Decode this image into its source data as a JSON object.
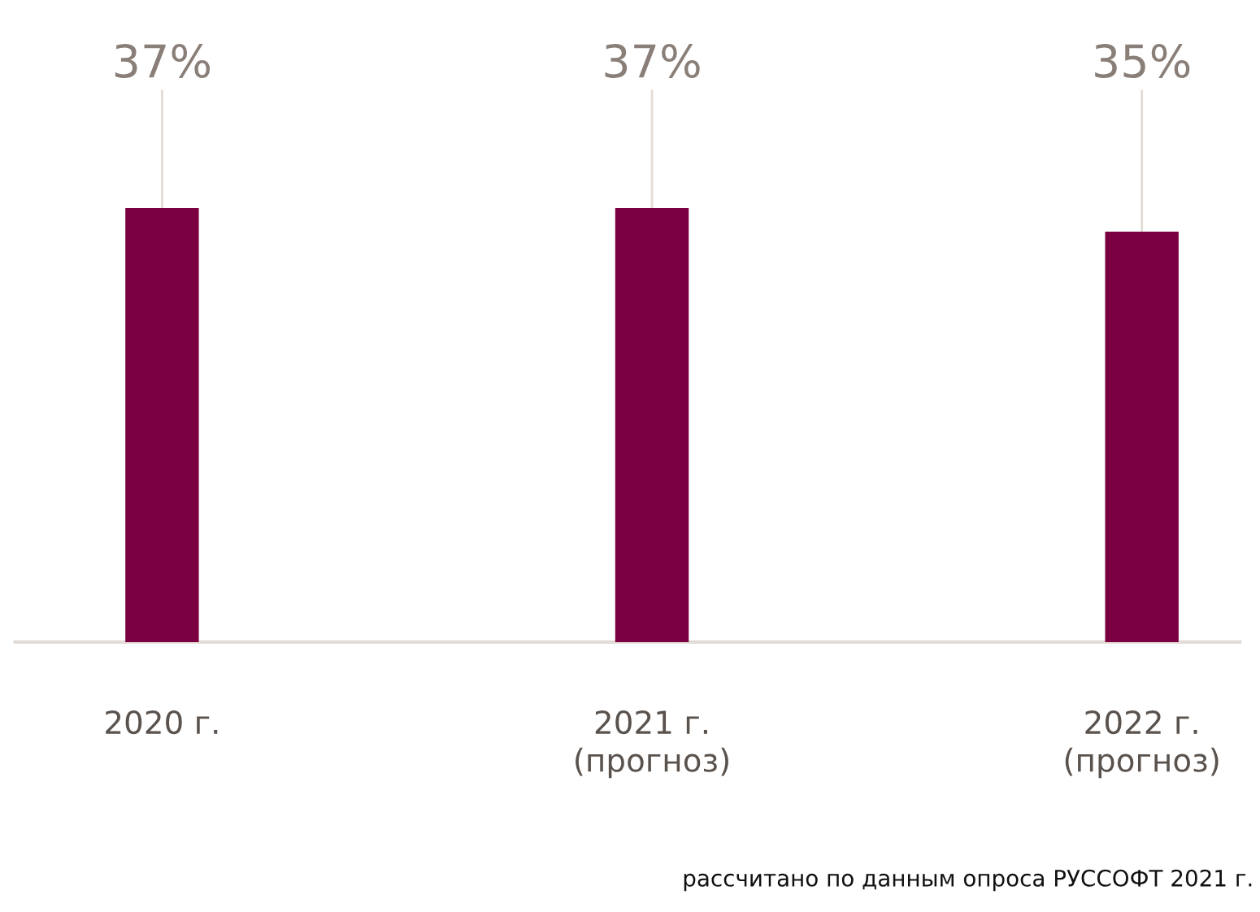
{
  "chart_data": {
    "type": "bar",
    "categories": [
      "2020 г.",
      "2021 г.\n(прогноз)",
      "2022 г.\n(прогноз)"
    ],
    "values": [
      37,
      37,
      35
    ],
    "color": "#7a0042",
    "value_labels": [
      "37%",
      "37%",
      "35%"
    ],
    "grid": false,
    "legend": false,
    "annotations": [
      "рассчитано по данным опроса РУССОФТ 2021 г."
    ]
  }
}
